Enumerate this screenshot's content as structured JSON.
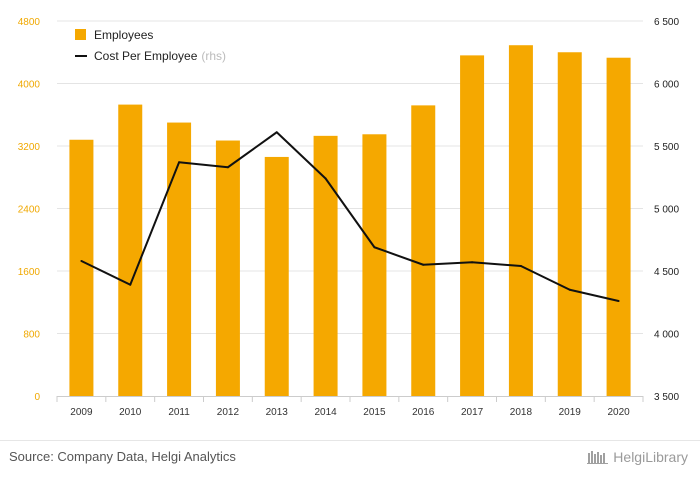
{
  "chart_data": {
    "type": "bar",
    "categories": [
      "2009",
      "2010",
      "2011",
      "2012",
      "2013",
      "2014",
      "2015",
      "2016",
      "2017",
      "2018",
      "2019",
      "2020"
    ],
    "series": [
      {
        "name": "Employees",
        "type": "bar",
        "axis": "left",
        "color": "#f5a800",
        "values": [
          3280,
          3730,
          3500,
          3270,
          3060,
          3330,
          3350,
          3720,
          4360,
          4490,
          4400,
          4330
        ]
      },
      {
        "name": "Cost Per Employee",
        "name_suffix": "(rhs)",
        "type": "line",
        "axis": "right",
        "color": "#111111",
        "values": [
          4580,
          4390,
          5370,
          5330,
          5610,
          5240,
          4690,
          4550,
          4570,
          4540,
          4350,
          4260
        ]
      }
    ],
    "left_axis": {
      "ylim": [
        0,
        4800
      ],
      "ticks": [
        "0",
        "800",
        "1600",
        "2400",
        "3200",
        "4000",
        "4800"
      ]
    },
    "right_axis": {
      "ylim": [
        3500,
        6500
      ],
      "ticks": [
        "3 500",
        "4 000",
        "4 500",
        "5 000",
        "5 500",
        "6 000",
        "6 500"
      ]
    },
    "grid": true,
    "legend_position": "top-left"
  },
  "footer": {
    "source": "Source: Company Data, Helgi Analytics",
    "brand": "HelgiLibrary"
  }
}
